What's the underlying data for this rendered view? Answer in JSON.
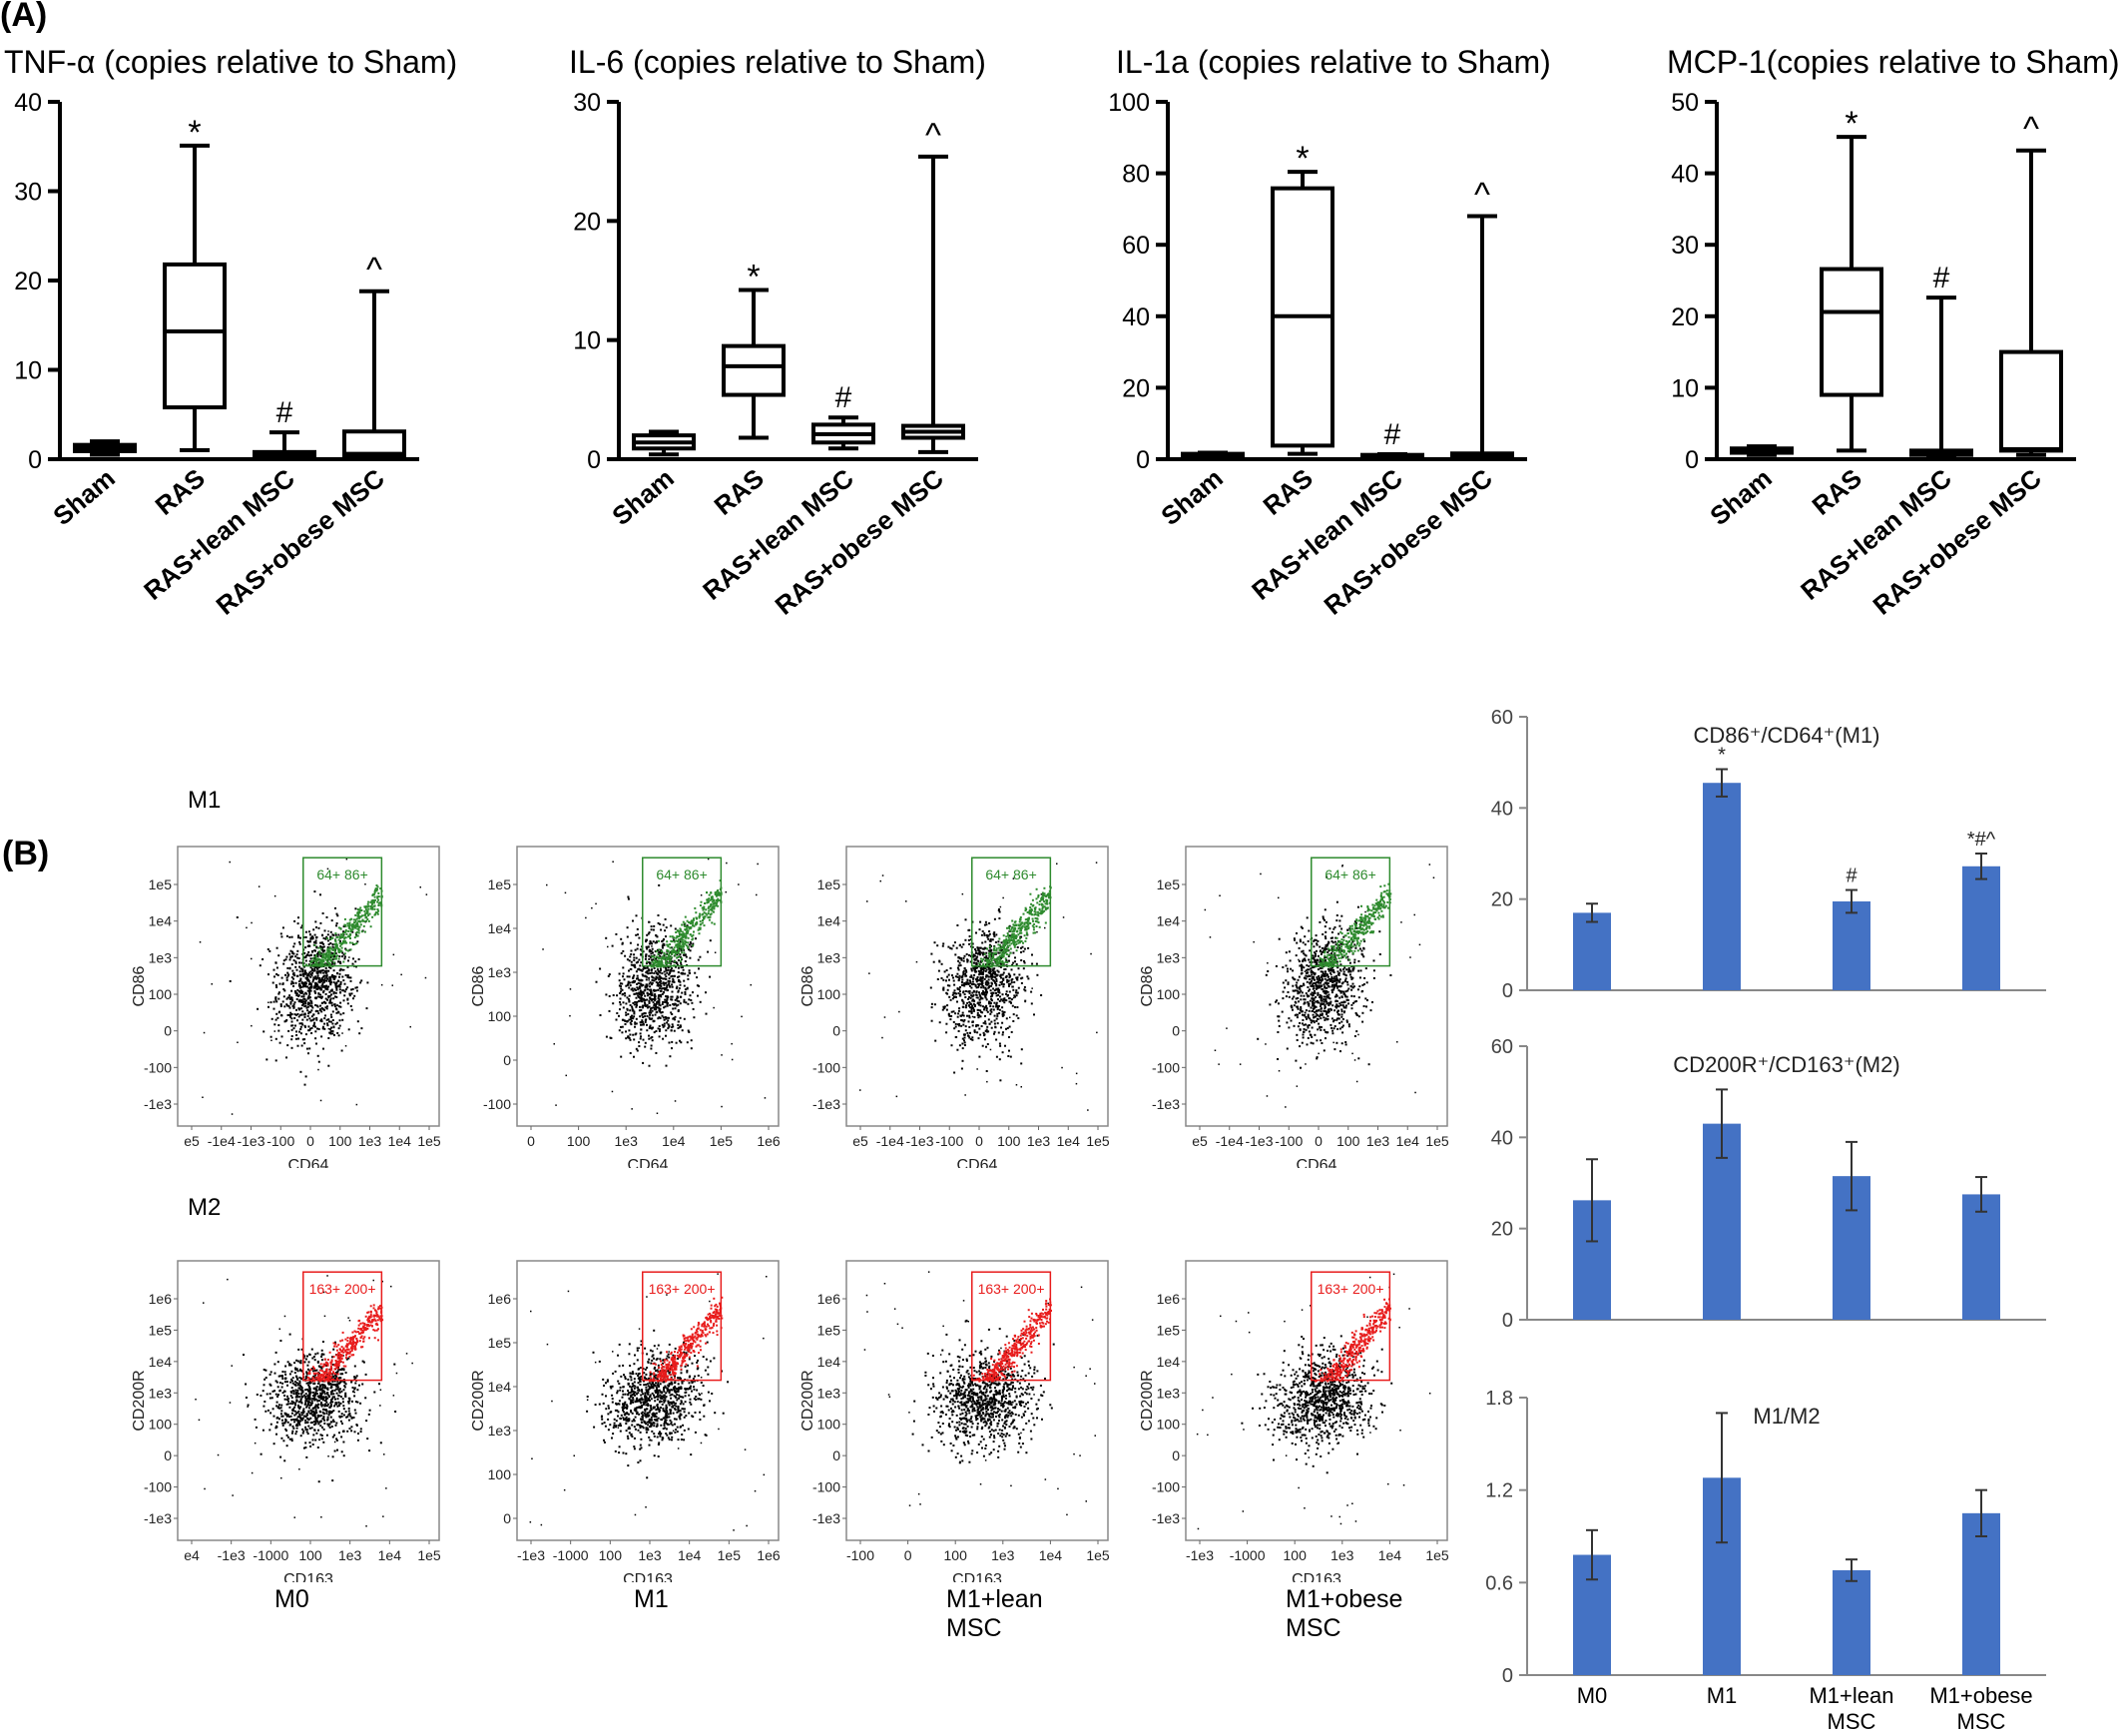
{
  "panel_a_label": "(A)",
  "panel_b_label": "(B)",
  "row_labels": {
    "m1": "M1",
    "m2": "M2"
  },
  "condition_labels": [
    "M0",
    "M1",
    "M1+lean\nMSC",
    "M1+obese\nMSC"
  ],
  "colors": {
    "box": "#000000",
    "bar": "#4472c4",
    "m1_gate": "#2e8b2e",
    "m2_gate": "#e81c1c"
  },
  "chart_data": [
    {
      "type": "box",
      "title": "TNF-α (copies relative to Sham)",
      "categories": [
        "Sham",
        "RAS",
        "RAS+lean MSC",
        "RAS+obese MSC"
      ],
      "ylim": [
        0,
        40
      ],
      "yticks": [
        0,
        10,
        20,
        30,
        40
      ],
      "boxes": [
        {
          "min": 0.5,
          "q1": 0.9,
          "median": 1.2,
          "q3": 1.6,
          "max": 2.0,
          "label": ""
        },
        {
          "min": 1.0,
          "q1": 5.8,
          "median": 14.3,
          "q3": 21.8,
          "max": 35.1,
          "label": "*"
        },
        {
          "min": 0.1,
          "q1": 0.3,
          "median": 0.5,
          "q3": 0.8,
          "max": 3.0,
          "label": "#"
        },
        {
          "min": 0.1,
          "q1": 0.4,
          "median": 0.6,
          "q3": 3.1,
          "max": 18.8,
          "label": "^"
        }
      ]
    },
    {
      "type": "box",
      "title": "IL-6 (copies relative to Sham)",
      "categories": [
        "Sham",
        "RAS",
        "RAS+lean MSC",
        "RAS+obese MSC"
      ],
      "ylim": [
        0,
        30
      ],
      "yticks": [
        0,
        10,
        20,
        30
      ],
      "boxes": [
        {
          "min": 0.4,
          "q1": 0.9,
          "median": 1.4,
          "q3": 2.0,
          "max": 2.3,
          "label": ""
        },
        {
          "min": 1.8,
          "q1": 5.4,
          "median": 7.8,
          "q3": 9.5,
          "max": 14.2,
          "label": "*"
        },
        {
          "min": 0.9,
          "q1": 1.4,
          "median": 2.1,
          "q3": 2.9,
          "max": 3.5,
          "label": "#"
        },
        {
          "min": 0.6,
          "q1": 1.8,
          "median": 2.3,
          "q3": 2.8,
          "max": 25.4,
          "label": "^"
        }
      ]
    },
    {
      "type": "box",
      "title": "IL-1a (copies relative to Sham)",
      "categories": [
        "Sham",
        "RAS",
        "RAS+lean MSC",
        "RAS+obese MSC"
      ],
      "ylim": [
        0,
        100
      ],
      "yticks": [
        0,
        20,
        40,
        60,
        80,
        100
      ],
      "boxes": [
        {
          "min": 0.8,
          "q1": 1.0,
          "median": 1.2,
          "q3": 1.5,
          "max": 1.8,
          "label": ""
        },
        {
          "min": 1.5,
          "q1": 3.8,
          "median": 40.0,
          "q3": 75.8,
          "max": 80.4,
          "label": "*"
        },
        {
          "min": 0.6,
          "q1": 0.8,
          "median": 1.0,
          "q3": 1.2,
          "max": 1.4,
          "label": "#"
        },
        {
          "min": 0.5,
          "q1": 0.9,
          "median": 1.2,
          "q3": 1.6,
          "max": 68.0,
          "label": "^"
        }
      ]
    },
    {
      "type": "box",
      "title": "MCP-1(copies relative to Sham)",
      "categories": [
        "Sham",
        "RAS",
        "RAS+lean MSC",
        "RAS+obese MSC"
      ],
      "ylim": [
        0,
        50
      ],
      "yticks": [
        0,
        10,
        20,
        30,
        40,
        50
      ],
      "boxes": [
        {
          "min": 0.6,
          "q1": 0.9,
          "median": 1.2,
          "q3": 1.5,
          "max": 1.8,
          "label": ""
        },
        {
          "min": 1.2,
          "q1": 9.0,
          "median": 20.6,
          "q3": 26.6,
          "max": 45.1,
          "label": "*"
        },
        {
          "min": 0.3,
          "q1": 0.6,
          "median": 0.9,
          "q3": 1.2,
          "max": 22.6,
          "label": "#"
        },
        {
          "min": 0.6,
          "q1": 1.2,
          "median": 1.4,
          "q3": 15.0,
          "max": 43.2,
          "label": "^"
        }
      ]
    },
    {
      "type": "bar",
      "title": "CD86⁺/CD64⁺(M1)",
      "categories": [
        "M0",
        "M1",
        "M1+lean MSC",
        "M1+obese MSC"
      ],
      "values": [
        17.0,
        45.5,
        19.5,
        27.2
      ],
      "errors": [
        2.0,
        3.0,
        2.5,
        2.8
      ],
      "annotations": [
        "",
        "*",
        "#",
        "*#^"
      ],
      "ylim": [
        0,
        60
      ],
      "yticks": [
        0,
        20,
        40,
        60
      ]
    },
    {
      "type": "bar",
      "title": "CD200R⁺/CD163⁺(M2)",
      "categories": [
        "M0",
        "M1",
        "M1+lean MSC",
        "M1+obese MSC"
      ],
      "values": [
        26.2,
        43.0,
        31.5,
        27.5
      ],
      "errors": [
        9.0,
        7.5,
        7.5,
        3.8
      ],
      "annotations": [
        "",
        "",
        "",
        ""
      ],
      "ylim": [
        0,
        60
      ],
      "yticks": [
        0,
        20,
        40,
        60
      ]
    },
    {
      "type": "bar",
      "title": "M1/M2",
      "categories": [
        "M0",
        "M1",
        "M1+lean MSC",
        "M1+obese MSC"
      ],
      "x_tick_labels": [
        "M0",
        "M1",
        "M1+lean\nMSC",
        "M1+obese\nMSC"
      ],
      "values": [
        0.78,
        1.28,
        0.68,
        1.05
      ],
      "errors": [
        0.16,
        0.42,
        0.07,
        0.15
      ],
      "annotations": [
        "",
        "",
        "",
        ""
      ],
      "ylim": [
        0,
        1.8
      ],
      "yticks": [
        "0",
        "0.6",
        "1.2",
        "1.8"
      ]
    }
  ],
  "flow_plots": [
    {
      "row": "M1",
      "condition": "M0",
      "xlabel": "CD64",
      "ylabel": "CD86",
      "gate": "64+ 86+",
      "xticks": [
        "e5",
        "-1e4",
        "-1e3",
        "-100",
        "0",
        "100",
        "1e3",
        "1e4",
        "1e5"
      ],
      "yticks": [
        "1e5",
        "1e4",
        "1e3",
        "100",
        "0",
        "-100",
        "-1e3"
      ]
    },
    {
      "row": "M1",
      "condition": "M1",
      "xlabel": "CD64",
      "ylabel": "CD86",
      "gate": "64+ 86+",
      "xticks": [
        "0",
        "100",
        "1e3",
        "1e4",
        "1e5",
        "1e6"
      ],
      "yticks": [
        "1e5",
        "1e4",
        "1e3",
        "100",
        "0",
        "-100"
      ]
    },
    {
      "row": "M1",
      "condition": "M1+lean MSC",
      "xlabel": "CD64",
      "ylabel": "CD86",
      "gate": "64+ 86+",
      "xticks": [
        "e5",
        "-1e4",
        "-1e3",
        "-100",
        "0",
        "100",
        "1e3",
        "1e4",
        "1e5"
      ],
      "yticks": [
        "1e5",
        "1e4",
        "1e3",
        "100",
        "0",
        "-100",
        "-1e3"
      ]
    },
    {
      "row": "M1",
      "condition": "M1+obese MSC",
      "xlabel": "CD64",
      "ylabel": "CD86",
      "gate": "64+ 86+",
      "xticks": [
        "e5",
        "-1e4",
        "-1e3",
        "-100",
        "0",
        "100",
        "1e3",
        "1e4",
        "1e5"
      ],
      "yticks": [
        "1e5",
        "1e4",
        "1e3",
        "100",
        "0",
        "-100",
        "-1e3"
      ]
    },
    {
      "row": "M2",
      "condition": "M0",
      "xlabel": "CD163",
      "ylabel": "CD200R",
      "gate": "163+ 200+",
      "xticks": [
        "e4",
        "-1e3",
        "-1000",
        "100",
        "1e3",
        "1e4",
        "1e5"
      ],
      "yticks": [
        "1e6",
        "1e5",
        "1e4",
        "1e3",
        "100",
        "0",
        "-100",
        "-1e3"
      ]
    },
    {
      "row": "M2",
      "condition": "M1",
      "xlabel": "CD163",
      "ylabel": "CD200R",
      "gate": "163+ 200+",
      "xticks": [
        "-1e3",
        "-1000",
        "100",
        "1e3",
        "1e4",
        "1e5",
        "1e6"
      ],
      "yticks": [
        "1e6",
        "1e5",
        "1e4",
        "1e3",
        "100",
        "0"
      ]
    },
    {
      "row": "M2",
      "condition": "M1+lean MSC",
      "xlabel": "CD163",
      "ylabel": "CD200R",
      "gate": "163+ 200+",
      "xticks": [
        "-100",
        "0",
        "100",
        "1e3",
        "1e4",
        "1e5"
      ],
      "yticks": [
        "1e6",
        "1e5",
        "1e4",
        "1e3",
        "100",
        "0",
        "-100",
        "-1e3"
      ]
    },
    {
      "row": "M2",
      "condition": "M1+obese MSC",
      "xlabel": "CD163",
      "ylabel": "CD200R",
      "gate": "163+ 200+",
      "xticks": [
        "-1e3",
        "-1000",
        "100",
        "1e3",
        "1e4",
        "1e5"
      ],
      "yticks": [
        "1e6",
        "1e5",
        "1e4",
        "1e3",
        "100",
        "0",
        "-100",
        "-1e3"
      ]
    }
  ]
}
